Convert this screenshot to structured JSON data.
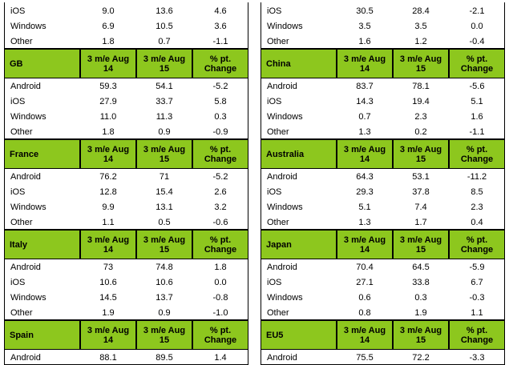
{
  "tables": [
    {
      "sections": [
        {
          "rows": [
            [
              "iOS",
              "9.0",
              "13.6",
              "4.6"
            ],
            [
              "Windows",
              "6.9",
              "10.5",
              "3.6"
            ],
            [
              "Other",
              "1.8",
              "0.7",
              "-1.1"
            ]
          ]
        },
        {
          "header": {
            "country": "GB",
            "columns": [
              "3 m/e Aug 14",
              "3 m/e Aug 15",
              "% pt. Change"
            ]
          },
          "rows": [
            [
              "Android",
              "59.3",
              "54.1",
              "-5.2"
            ],
            [
              "iOS",
              "27.9",
              "33.7",
              "5.8"
            ],
            [
              "Windows",
              "11.0",
              "11.3",
              "0.3"
            ],
            [
              "Other",
              "1.8",
              "0.9",
              "-0.9"
            ]
          ]
        },
        {
          "header": {
            "country": "France",
            "columns": [
              "3 m/e Aug 14",
              "3 m/e Aug 15",
              "% pt. Change"
            ]
          },
          "rows": [
            [
              "Android",
              "76.2",
              "71",
              "-5.2"
            ],
            [
              "iOS",
              "12.8",
              "15.4",
              "2.6"
            ],
            [
              "Windows",
              "9.9",
              "13.1",
              "3.2"
            ],
            [
              "Other",
              "1.1",
              "0.5",
              "-0.6"
            ]
          ]
        },
        {
          "header": {
            "country": "Italy",
            "columns": [
              "3 m/e Aug 14",
              "3 m/e Aug 15",
              "% pt. Change"
            ]
          },
          "rows": [
            [
              "Android",
              "73",
              "74.8",
              "1.8"
            ],
            [
              "iOS",
              "10.6",
              "10.6",
              "0.0"
            ],
            [
              "Windows",
              "14.5",
              "13.7",
              "-0.8"
            ],
            [
              "Other",
              "1.9",
              "0.9",
              "-1.0"
            ]
          ]
        },
        {
          "header": {
            "country": "Spain",
            "columns": [
              "3 m/e Aug 14",
              "3 m/e Aug 15",
              "% pt. Change"
            ]
          },
          "rows": [
            [
              "Android",
              "88.1",
              "89.5",
              "1.4"
            ]
          ]
        }
      ]
    },
    {
      "sections": [
        {
          "rows": [
            [
              "iOS",
              "30.5",
              "28.4",
              "-2.1"
            ],
            [
              "Windows",
              "3.5",
              "3.5",
              "0.0"
            ],
            [
              "Other",
              "1.6",
              "1.2",
              "-0.4"
            ]
          ]
        },
        {
          "header": {
            "country": "China",
            "columns": [
              "3 m/e Aug 14",
              "3 m/e Aug 15",
              "% pt. Change"
            ]
          },
          "rows": [
            [
              "Android",
              "83.7",
              "78.1",
              "-5.6"
            ],
            [
              "iOS",
              "14.3",
              "19.4",
              "5.1"
            ],
            [
              "Windows",
              "0.7",
              "2.3",
              "1.6"
            ],
            [
              "Other",
              "1.3",
              "0.2",
              "-1.1"
            ]
          ]
        },
        {
          "header": {
            "country": "Australia",
            "columns": [
              "3 m/e Aug 14",
              "3 m/e Aug 15",
              "% pt. Change"
            ]
          },
          "rows": [
            [
              "Android",
              "64.3",
              "53.1",
              "-11.2"
            ],
            [
              "iOS",
              "29.3",
              "37.8",
              "8.5"
            ],
            [
              "Windows",
              "5.1",
              "7.4",
              "2.3"
            ],
            [
              "Other",
              "1.3",
              "1.7",
              "0.4"
            ]
          ]
        },
        {
          "header": {
            "country": "Japan",
            "columns": [
              "3 m/e Aug 14",
              "3 m/e Aug 15",
              "% pt. Change"
            ]
          },
          "rows": [
            [
              "Android",
              "70.4",
              "64.5",
              "-5.9"
            ],
            [
              "iOS",
              "27.1",
              "33.8",
              "6.7"
            ],
            [
              "Windows",
              "0.6",
              "0.3",
              "-0.3"
            ],
            [
              "Other",
              "0.8",
              "1.9",
              "1.1"
            ]
          ]
        },
        {
          "header": {
            "country": "EU5",
            "columns": [
              "3 m/e Aug 14",
              "3 m/e Aug 15",
              "% pt. Change"
            ]
          },
          "rows": [
            [
              "Android",
              "75.5",
              "72.2",
              "-3.3"
            ]
          ]
        }
      ]
    }
  ]
}
